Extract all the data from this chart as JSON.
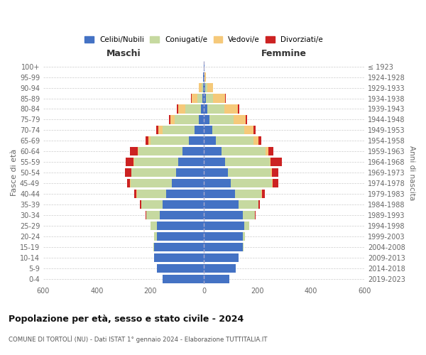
{
  "age_groups": [
    "0-4",
    "5-9",
    "10-14",
    "15-19",
    "20-24",
    "25-29",
    "30-34",
    "35-39",
    "40-44",
    "45-49",
    "50-54",
    "55-59",
    "60-64",
    "65-69",
    "70-74",
    "75-79",
    "80-84",
    "85-89",
    "90-94",
    "95-99",
    "100+"
  ],
  "birth_years": [
    "2019-2023",
    "2014-2018",
    "2009-2013",
    "2004-2008",
    "1999-2003",
    "1994-1998",
    "1989-1993",
    "1984-1988",
    "1979-1983",
    "1974-1978",
    "1969-1973",
    "1964-1968",
    "1959-1963",
    "1954-1958",
    "1949-1953",
    "1944-1948",
    "1939-1943",
    "1934-1938",
    "1929-1933",
    "1924-1928",
    "≤ 1923"
  ],
  "colors": {
    "celibi": "#4472c4",
    "coniugati": "#c6d9a0",
    "vedovi": "#f5c97a",
    "divorziati": "#cc2222"
  },
  "males": {
    "celibi": [
      155,
      175,
      185,
      185,
      175,
      175,
      165,
      155,
      140,
      120,
      105,
      95,
      80,
      55,
      35,
      20,
      10,
      5,
      3,
      2,
      1
    ],
    "coniugati": [
      0,
      0,
      0,
      3,
      10,
      25,
      50,
      80,
      110,
      155,
      165,
      165,
      165,
      145,
      120,
      90,
      60,
      20,
      5,
      0,
      0
    ],
    "vedovi": [
      0,
      0,
      0,
      0,
      0,
      0,
      0,
      0,
      2,
      2,
      2,
      2,
      3,
      8,
      15,
      15,
      25,
      20,
      10,
      2,
      0
    ],
    "divorziati": [
      0,
      0,
      0,
      0,
      0,
      0,
      2,
      5,
      8,
      10,
      22,
      30,
      28,
      10,
      8,
      5,
      5,
      2,
      0,
      0,
      0
    ]
  },
  "females": {
    "nubili": [
      95,
      120,
      130,
      145,
      145,
      150,
      145,
      130,
      115,
      100,
      90,
      80,
      65,
      45,
      30,
      20,
      12,
      8,
      5,
      3,
      1
    ],
    "coniugate": [
      0,
      0,
      0,
      2,
      8,
      18,
      45,
      75,
      100,
      155,
      160,
      165,
      165,
      140,
      120,
      90,
      65,
      25,
      8,
      0,
      0
    ],
    "vedove": [
      0,
      0,
      0,
      0,
      0,
      0,
      0,
      0,
      3,
      3,
      5,
      5,
      10,
      20,
      35,
      45,
      50,
      45,
      20,
      5,
      0
    ],
    "divorziate": [
      0,
      0,
      0,
      0,
      0,
      0,
      2,
      5,
      10,
      20,
      22,
      40,
      20,
      10,
      8,
      5,
      5,
      3,
      2,
      0,
      0
    ]
  },
  "title": "Popolazione per età, sesso e stato civile - 2024",
  "subtitle": "COMUNE DI TORTOLÌ (NU) - Dati ISTAT 1° gennaio 2024 - Elaborazione TUTTITALIA.IT",
  "xlabel_left": "Maschi",
  "xlabel_right": "Femmine",
  "ylabel": "Fasce di età",
  "ylabel_right": "Anni di nascita",
  "xlim": 600,
  "legend_labels": [
    "Celibi/Nubili",
    "Coniugati/e",
    "Vedovi/e",
    "Divorziati/e"
  ],
  "background_color": "#ffffff",
  "grid_color": "#cccccc"
}
